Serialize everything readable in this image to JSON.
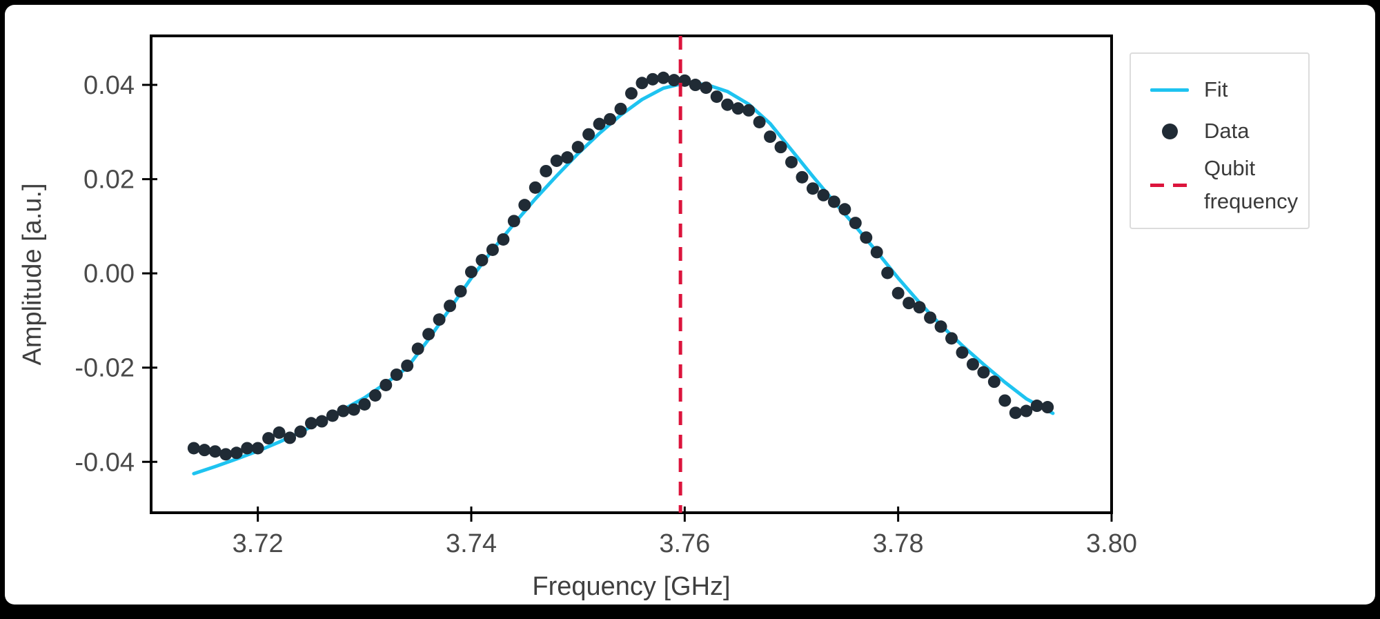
{
  "figure": {
    "page_background": "#000000",
    "card_background": "#ffffff"
  },
  "chart_data": {
    "type": "scatter",
    "title": "",
    "xlabel": "Frequency [GHz]",
    "ylabel": "Amplitude [a.u.]",
    "xlim": [
      3.71,
      3.8
    ],
    "ylim": [
      -0.0508,
      0.0504
    ],
    "grid": false,
    "legend_position": "outside-upper-right",
    "axis_color": "#000000",
    "tick_label_color": "#4a4a4a",
    "axis_label_color": "#3f3f3f",
    "legend_text_color": "#3a3a3a",
    "legend_border_color": "#dcdcdc",
    "xticks": {
      "values": [
        3.72,
        3.74,
        3.76,
        3.78,
        3.8
      ],
      "labels": [
        "3.72",
        "3.74",
        "3.76",
        "3.78",
        "3.80"
      ]
    },
    "yticks": {
      "values": [
        0.04,
        0.02,
        0.0,
        -0.02,
        -0.04
      ],
      "labels": [
        "0.04",
        "0.02",
        "0.00",
        "-0.02",
        "-0.04"
      ]
    },
    "series": {
      "fit": {
        "name": "Fit",
        "type": "line",
        "color": "#1EC3F0",
        "line_width": 5,
        "points": [
          [
            3.714,
            -0.0425
          ],
          [
            3.716,
            -0.041
          ],
          [
            3.718,
            -0.0394
          ],
          [
            3.72,
            -0.0377
          ],
          [
            3.722,
            -0.0358
          ],
          [
            3.724,
            -0.0337
          ],
          [
            3.726,
            -0.0314
          ],
          [
            3.728,
            -0.0289
          ],
          [
            3.73,
            -0.0264
          ],
          [
            3.732,
            -0.0233
          ],
          [
            3.734,
            -0.02
          ],
          [
            3.736,
            -0.014
          ],
          [
            3.738,
            -0.0075
          ],
          [
            3.74,
            -0.001
          ],
          [
            3.742,
            0.005
          ],
          [
            3.744,
            0.0105
          ],
          [
            3.746,
            0.0158
          ],
          [
            3.748,
            0.0207
          ],
          [
            3.75,
            0.0254
          ],
          [
            3.752,
            0.0297
          ],
          [
            3.754,
            0.0336
          ],
          [
            3.756,
            0.0369
          ],
          [
            3.758,
            0.0393
          ],
          [
            3.76,
            0.0404
          ],
          [
            3.762,
            0.0401
          ],
          [
            3.764,
            0.0386
          ],
          [
            3.766,
            0.0359
          ],
          [
            3.768,
            0.0318
          ],
          [
            3.77,
            0.0262
          ],
          [
            3.772,
            0.0206
          ],
          [
            3.774,
            0.0152
          ],
          [
            3.776,
            0.01
          ],
          [
            3.778,
            0.0046
          ],
          [
            3.78,
            -0.001
          ],
          [
            3.782,
            -0.0062
          ],
          [
            3.784,
            -0.011
          ],
          [
            3.786,
            -0.0153
          ],
          [
            3.788,
            -0.0193
          ],
          [
            3.79,
            -0.0231
          ],
          [
            3.792,
            -0.0266
          ],
          [
            3.7945,
            -0.0297
          ]
        ]
      },
      "data": {
        "name": "Data",
        "type": "scatter",
        "color": "#202B35",
        "marker_radius": 9,
        "points": [
          [
            3.714,
            -0.0371
          ],
          [
            3.715,
            -0.0375
          ],
          [
            3.716,
            -0.0378
          ],
          [
            3.717,
            -0.0384
          ],
          [
            3.718,
            -0.0381
          ],
          [
            3.719,
            -0.0371
          ],
          [
            3.72,
            -0.0371
          ],
          [
            3.721,
            -0.035
          ],
          [
            3.722,
            -0.0338
          ],
          [
            3.723,
            -0.0349
          ],
          [
            3.724,
            -0.0336
          ],
          [
            3.725,
            -0.0318
          ],
          [
            3.726,
            -0.0314
          ],
          [
            3.727,
            -0.0302
          ],
          [
            3.728,
            -0.0292
          ],
          [
            3.729,
            -0.0289
          ],
          [
            3.73,
            -0.0278
          ],
          [
            3.731,
            -0.0259
          ],
          [
            3.732,
            -0.0237
          ],
          [
            3.733,
            -0.0215
          ],
          [
            3.734,
            -0.0196
          ],
          [
            3.735,
            -0.016
          ],
          [
            3.736,
            -0.0129
          ],
          [
            3.737,
            -0.0098
          ],
          [
            3.738,
            -0.0069
          ],
          [
            3.739,
            -0.0038
          ],
          [
            3.74,
            0.0003
          ],
          [
            3.741,
            0.0028
          ],
          [
            3.742,
            0.005
          ],
          [
            3.743,
            0.0072
          ],
          [
            3.744,
            0.0111
          ],
          [
            3.745,
            0.0145
          ],
          [
            3.746,
            0.0182
          ],
          [
            3.747,
            0.0217
          ],
          [
            3.748,
            0.0239
          ],
          [
            3.749,
            0.0246
          ],
          [
            3.75,
            0.0268
          ],
          [
            3.751,
            0.0295
          ],
          [
            3.752,
            0.0317
          ],
          [
            3.753,
            0.0327
          ],
          [
            3.754,
            0.0349
          ],
          [
            3.755,
            0.0382
          ],
          [
            3.756,
            0.0404
          ],
          [
            3.757,
            0.0412
          ],
          [
            3.758,
            0.0415
          ],
          [
            3.759,
            0.041
          ],
          [
            3.76,
            0.0409
          ],
          [
            3.761,
            0.04
          ],
          [
            3.762,
            0.0394
          ],
          [
            3.763,
            0.0375
          ],
          [
            3.764,
            0.0358
          ],
          [
            3.765,
            0.035
          ],
          [
            3.766,
            0.0346
          ],
          [
            3.767,
            0.0321
          ],
          [
            3.768,
            0.029
          ],
          [
            3.769,
            0.0268
          ],
          [
            3.77,
            0.0236
          ],
          [
            3.771,
            0.0204
          ],
          [
            3.772,
            0.018
          ],
          [
            3.773,
            0.0166
          ],
          [
            3.774,
            0.0152
          ],
          [
            3.775,
            0.0136
          ],
          [
            3.776,
            0.0107
          ],
          [
            3.777,
            0.0076
          ],
          [
            3.778,
            0.0045
          ],
          [
            3.779,
            0.0001
          ],
          [
            3.78,
            -0.0042
          ],
          [
            3.781,
            -0.0063
          ],
          [
            3.782,
            -0.0072
          ],
          [
            3.783,
            -0.0094
          ],
          [
            3.784,
            -0.0113
          ],
          [
            3.785,
            -0.0138
          ],
          [
            3.786,
            -0.0168
          ],
          [
            3.787,
            -0.0193
          ],
          [
            3.788,
            -0.021
          ],
          [
            3.789,
            -0.023
          ],
          [
            3.79,
            -0.027
          ],
          [
            3.791,
            -0.0296
          ],
          [
            3.792,
            -0.0292
          ],
          [
            3.793,
            -0.0281
          ],
          [
            3.794,
            -0.0284
          ]
        ]
      },
      "qubit_frequency": {
        "name": "Qubit frequency",
        "type": "vline",
        "color": "#DC143C",
        "x": 3.7596,
        "line_width": 5,
        "dash": [
          20,
          14
        ]
      }
    }
  }
}
